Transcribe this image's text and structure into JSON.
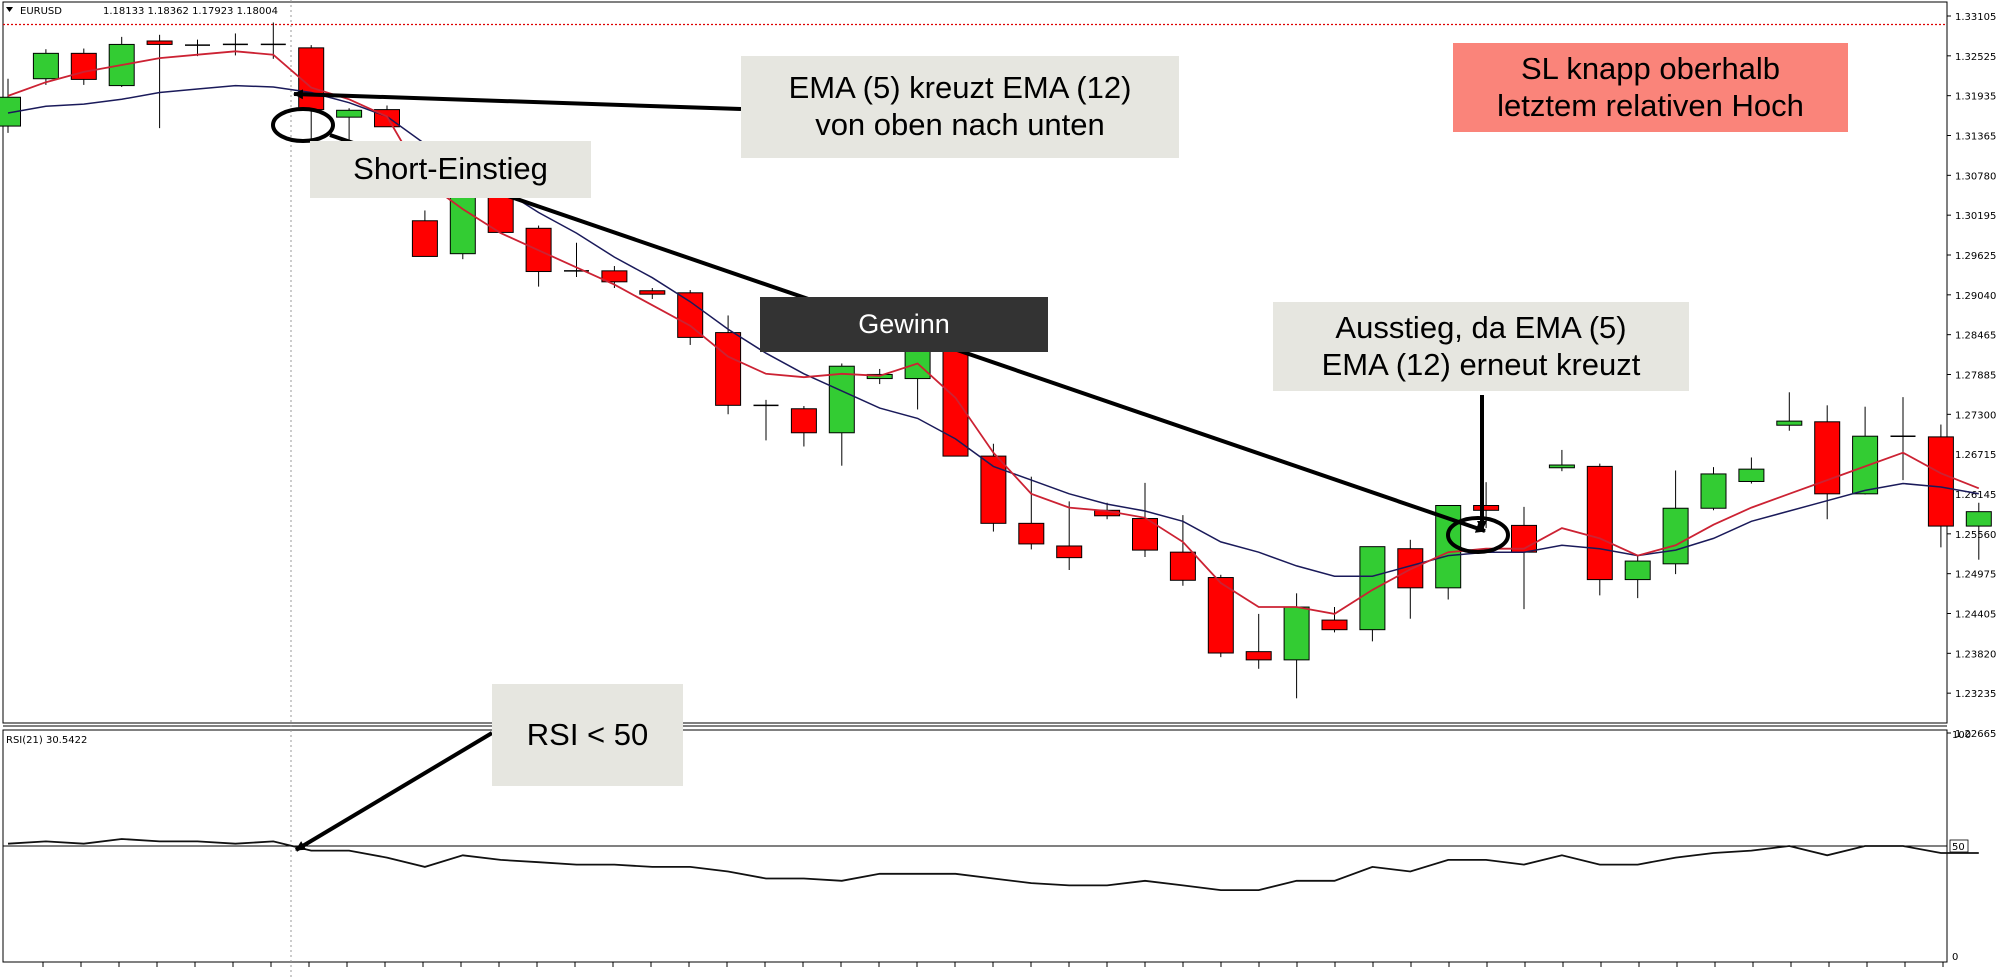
{
  "chart_data": [
    {
      "type": "candlestick",
      "symbol": "EURUSD",
      "ohlc_header": "1.18133 1.18362 1.17923 1.18004",
      "ylim": [
        1.2266,
        1.3311
      ],
      "y_ticks": [
        "1.33105",
        "1.32525",
        "1.31935",
        "1.31365",
        "1.30780",
        "1.30195",
        "1.29625",
        "1.29040",
        "1.28465",
        "1.27885",
        "1.27300",
        "1.26715",
        "1.26145",
        "1.25560",
        "1.24975",
        "1.24405",
        "1.23820",
        "1.23235",
        "1.22665"
      ],
      "sl_level": 1.3284,
      "candles": [
        {
          "o": 1.3136,
          "h": 1.3205,
          "l": 1.3126,
          "c": 1.3178
        },
        {
          "o": 1.3205,
          "h": 1.3248,
          "l": 1.3196,
          "c": 1.3242
        },
        {
          "o": 1.3242,
          "h": 1.3249,
          "l": 1.3196,
          "c": 1.3204
        },
        {
          "o": 1.3195,
          "h": 1.3266,
          "l": 1.3193,
          "c": 1.3255
        },
        {
          "o": 1.326,
          "h": 1.3269,
          "l": 1.3133,
          "c": 1.3255
        },
        {
          "o": 1.3254,
          "h": 1.3262,
          "l": 1.3238,
          "c": 1.3254
        },
        {
          "o": 1.3255,
          "h": 1.3271,
          "l": 1.3239,
          "c": 1.3255
        },
        {
          "o": 1.3255,
          "h": 1.3287,
          "l": 1.3234,
          "c": 1.3255
        },
        {
          "o": 1.325,
          "h": 1.3254,
          "l": 1.311,
          "c": 1.316
        },
        {
          "o": 1.3149,
          "h": 1.3162,
          "l": 1.3107,
          "c": 1.3159
        },
        {
          "o": 1.316,
          "h": 1.3166,
          "l": 1.314,
          "c": 1.3135
        },
        {
          "o": 1.2998,
          "h": 1.3013,
          "l": 1.295,
          "c": 1.2946
        },
        {
          "o": 1.295,
          "h": 1.3037,
          "l": 1.2942,
          "c": 1.3045
        },
        {
          "o": 1.3045,
          "h": 1.3049,
          "l": 1.299,
          "c": 1.2981
        },
        {
          "o": 1.2987,
          "h": 1.2991,
          "l": 1.2902,
          "c": 1.2924
        },
        {
          "o": 1.2925,
          "h": 1.2966,
          "l": 1.2916,
          "c": 1.2924
        },
        {
          "o": 1.2925,
          "h": 1.2932,
          "l": 1.29,
          "c": 1.2909
        },
        {
          "o": 1.2896,
          "h": 1.29,
          "l": 1.2884,
          "c": 1.2891
        },
        {
          "o": 1.2893,
          "h": 1.2897,
          "l": 1.2817,
          "c": 1.2828
        },
        {
          "o": 1.2835,
          "h": 1.286,
          "l": 1.2716,
          "c": 1.2729
        },
        {
          "o": 1.2729,
          "h": 1.2737,
          "l": 1.2678,
          "c": 1.2729
        },
        {
          "o": 1.2724,
          "h": 1.2728,
          "l": 1.2669,
          "c": 1.2689
        },
        {
          "o": 1.2689,
          "h": 1.279,
          "l": 1.2641,
          "c": 1.2786
        },
        {
          "o": 1.2768,
          "h": 1.2782,
          "l": 1.276,
          "c": 1.2774
        },
        {
          "o": 1.2768,
          "h": 1.2828,
          "l": 1.2723,
          "c": 1.2809
        },
        {
          "o": 1.2809,
          "h": 1.2818,
          "l": 1.2655,
          "c": 1.2655
        },
        {
          "o": 1.2655,
          "h": 1.2673,
          "l": 1.2545,
          "c": 1.2557
        },
        {
          "o": 1.2557,
          "h": 1.2625,
          "l": 1.2519,
          "c": 1.2527
        },
        {
          "o": 1.2524,
          "h": 1.2589,
          "l": 1.2489,
          "c": 1.2507
        },
        {
          "o": 1.2576,
          "h": 1.2587,
          "l": 1.2563,
          "c": 1.2568
        },
        {
          "o": 1.2564,
          "h": 1.2616,
          "l": 1.2508,
          "c": 1.2518
        },
        {
          "o": 1.2515,
          "h": 1.2569,
          "l": 1.2466,
          "c": 1.2474
        },
        {
          "o": 1.2478,
          "h": 1.2482,
          "l": 1.2362,
          "c": 1.2368
        },
        {
          "o": 1.237,
          "h": 1.2425,
          "l": 1.2345,
          "c": 1.2358
        },
        {
          "o": 1.2358,
          "h": 1.2455,
          "l": 1.2302,
          "c": 1.2435
        },
        {
          "o": 1.2416,
          "h": 1.2435,
          "l": 1.2398,
          "c": 1.2402
        },
        {
          "o": 1.2402,
          "h": 1.2523,
          "l": 1.2385,
          "c": 1.2523
        },
        {
          "o": 1.252,
          "h": 1.2533,
          "l": 1.2418,
          "c": 1.2463
        },
        {
          "o": 1.2463,
          "h": 1.2581,
          "l": 1.2446,
          "c": 1.2583
        },
        {
          "o": 1.2583,
          "h": 1.2617,
          "l": 1.255,
          "c": 1.2576
        },
        {
          "o": 1.2554,
          "h": 1.2581,
          "l": 1.2432,
          "c": 1.2515
        },
        {
          "o": 1.2638,
          "h": 1.2664,
          "l": 1.2633,
          "c": 1.2642
        },
        {
          "o": 1.264,
          "h": 1.2644,
          "l": 1.2452,
          "c": 1.2475
        },
        {
          "o": 1.2475,
          "h": 1.2509,
          "l": 1.2448,
          "c": 1.2502
        },
        {
          "o": 1.2498,
          "h": 1.2634,
          "l": 1.2483,
          "c": 1.2579
        },
        {
          "o": 1.2579,
          "h": 1.2639,
          "l": 1.2576,
          "c": 1.2629
        },
        {
          "o": 1.2618,
          "h": 1.2653,
          "l": 1.2615,
          "c": 1.2636
        },
        {
          "o": 1.27,
          "h": 1.2748,
          "l": 1.2692,
          "c": 1.2706
        },
        {
          "o": 1.2705,
          "h": 1.2729,
          "l": 1.2563,
          "c": 1.26
        },
        {
          "o": 1.26,
          "h": 1.2727,
          "l": 1.2599,
          "c": 1.2684
        },
        {
          "o": 1.2684,
          "h": 1.2741,
          "l": 1.262,
          "c": 1.2684
        },
        {
          "o": 1.2683,
          "h": 1.2701,
          "l": 1.2522,
          "c": 1.2553
        },
        {
          "o": 1.2553,
          "h": 1.2587,
          "l": 1.2504,
          "c": 1.2574
        }
      ],
      "ema_fast": [
        1.318,
        1.32,
        1.3215,
        1.3225,
        1.3235,
        1.324,
        1.3245,
        1.324,
        1.3192,
        1.3175,
        1.315,
        1.3055,
        1.3015,
        1.298,
        1.2955,
        1.293,
        1.2905,
        1.2875,
        1.2845,
        1.28,
        1.2775,
        1.277,
        1.2775,
        1.2772,
        1.279,
        1.274,
        1.266,
        1.26,
        1.258,
        1.2575,
        1.2565,
        1.253,
        1.247,
        1.2435,
        1.2435,
        1.2425,
        1.246,
        1.249,
        1.2515,
        1.252,
        1.252,
        1.255,
        1.2535,
        1.251,
        1.2525,
        1.2555,
        1.258,
        1.26,
        1.262,
        1.264,
        1.266,
        1.263,
        1.2608
      ],
      "ema_slow": [
        1.3155,
        1.3165,
        1.3168,
        1.3175,
        1.3185,
        1.319,
        1.3195,
        1.3193,
        1.3185,
        1.317,
        1.315,
        1.311,
        1.3075,
        1.3045,
        1.301,
        1.298,
        1.2945,
        1.2915,
        1.288,
        1.284,
        1.2805,
        1.2775,
        1.275,
        1.2725,
        1.271,
        1.268,
        1.264,
        1.262,
        1.26,
        1.2585,
        1.2575,
        1.256,
        1.253,
        1.2515,
        1.2495,
        1.248,
        1.248,
        1.2495,
        1.251,
        1.2515,
        1.2515,
        1.2525,
        1.252,
        1.251,
        1.2518,
        1.2535,
        1.256,
        1.2575,
        1.259,
        1.2605,
        1.2615,
        1.261,
        1.26
      ]
    },
    {
      "type": "line",
      "indicator_label": "RSI(21) 30.5422",
      "ylim": [
        0,
        100
      ],
      "y_ticks": [
        "100",
        "50",
        "0"
      ],
      "level": 50,
      "values": [
        51,
        52,
        51,
        53,
        52,
        52,
        51,
        52,
        48,
        48,
        45,
        41,
        46,
        44,
        43,
        42,
        42,
        41,
        41,
        39,
        36,
        36,
        35,
        38,
        38,
        38,
        36,
        34,
        33,
        33,
        35,
        33,
        31,
        31,
        35,
        35,
        41,
        39,
        44,
        44,
        42,
        46,
        42,
        42,
        45,
        47,
        48,
        50,
        46,
        50,
        50,
        47,
        47
      ]
    }
  ],
  "annotations": {
    "ema_cross": "EMA (5) kreuzt EMA (12)\nvon oben nach unten",
    "short_entry": "Short-Einstieg",
    "stop_loss": "SL knapp oberhalb\nletztem relativen Hoch",
    "profit": "Gewinn",
    "exit": "Ausstieg, da EMA (5)\nEMA (12) erneut kreuzt",
    "rsi_condition": "RSI < 50"
  },
  "colors": {
    "bull": "#33cc33",
    "bear": "#ff0000",
    "ema_fast": "#cc2233",
    "ema_slow": "#1a1a5a",
    "sl_line": "#dd0000",
    "annotation_bg": "#e6e6e0",
    "sl_box_bg": "#fa847a",
    "profit_box_bg": "#333333"
  }
}
